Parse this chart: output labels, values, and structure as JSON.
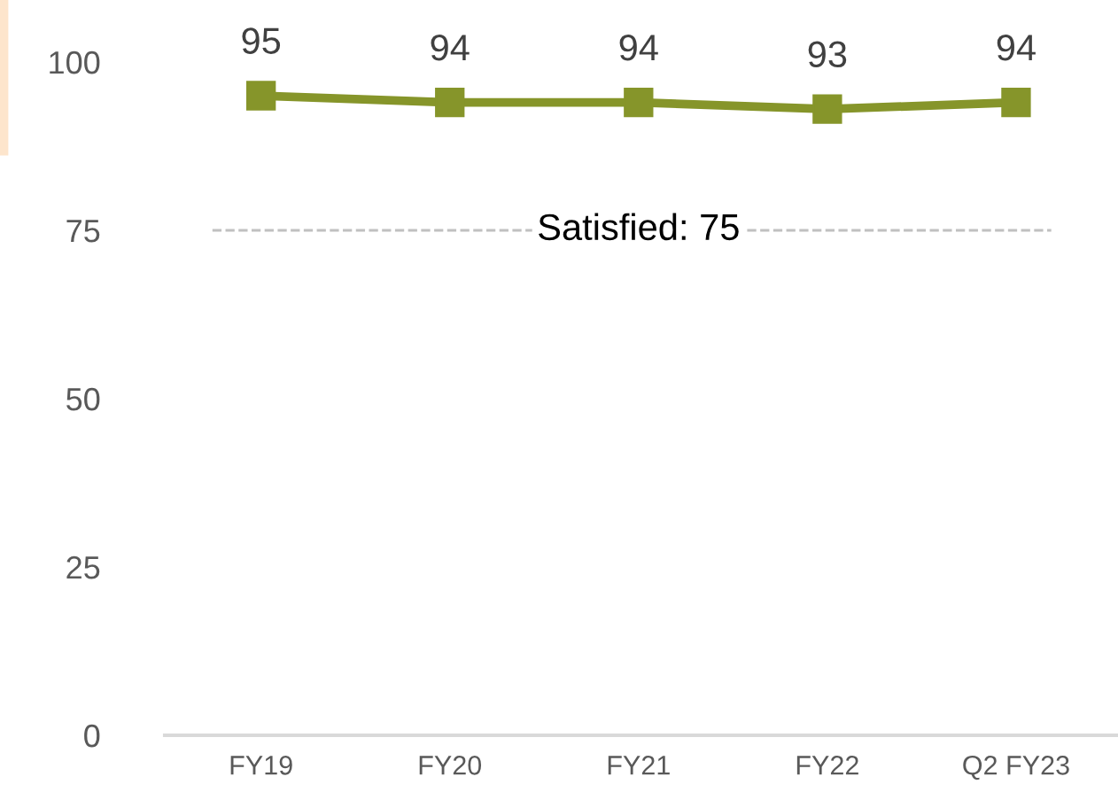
{
  "chart_data": {
    "type": "line",
    "categories": [
      "FY19",
      "FY20",
      "FY21",
      "FY22",
      "Q2 FY23"
    ],
    "series": [
      {
        "color": "#86952a",
        "values": [
          95,
          94,
          94,
          93,
          94
        ],
        "marker": "square"
      }
    ],
    "ylim": [
      0,
      100
    ],
    "yticks": [
      0,
      25,
      50,
      75,
      100
    ],
    "data_labels": true,
    "grid": false,
    "legend": false,
    "ref_lines": [
      {
        "axis": "y",
        "value": 75,
        "label": "Satisfied: 75",
        "color": "#c0c0c0",
        "line_style": "dashed"
      }
    ]
  }
}
